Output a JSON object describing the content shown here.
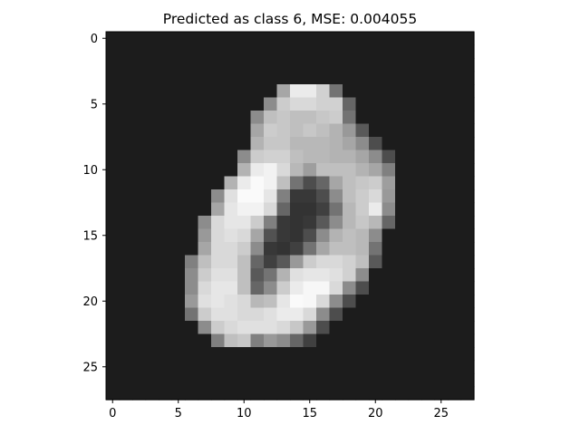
{
  "chart_data": {
    "type": "heatmap",
    "title": "Predicted as class 6, MSE: 0.004055",
    "xlabel": "",
    "ylabel": "",
    "colormap": "gray",
    "xlim": [
      -0.5,
      27.5
    ],
    "ylim": [
      27.5,
      -0.5
    ],
    "xticks": [
      0,
      5,
      10,
      15,
      20,
      25
    ],
    "yticks": [
      0,
      5,
      10,
      15,
      20,
      25
    ],
    "grid": false,
    "shape": [
      28,
      28
    ],
    "background_level": 0.11,
    "pixels": [
      [
        4,
        14,
        0.92
      ],
      [
        4,
        15,
        0.92
      ],
      [
        4,
        16,
        0.82
      ],
      [
        4,
        13,
        0.65
      ],
      [
        4,
        17,
        0.45
      ],
      [
        5,
        12,
        0.55
      ],
      [
        5,
        13,
        0.8
      ],
      [
        5,
        14,
        0.85
      ],
      [
        5,
        15,
        0.85
      ],
      [
        5,
        16,
        0.82
      ],
      [
        5,
        17,
        0.82
      ],
      [
        5,
        18,
        0.4
      ],
      [
        6,
        11,
        0.55
      ],
      [
        6,
        12,
        0.75
      ],
      [
        6,
        13,
        0.78
      ],
      [
        6,
        14,
        0.75
      ],
      [
        6,
        15,
        0.75
      ],
      [
        6,
        16,
        0.78
      ],
      [
        6,
        17,
        0.8
      ],
      [
        6,
        18,
        0.45
      ],
      [
        7,
        11,
        0.65
      ],
      [
        7,
        12,
        0.8
      ],
      [
        7,
        13,
        0.78
      ],
      [
        7,
        14,
        0.75
      ],
      [
        7,
        15,
        0.78
      ],
      [
        7,
        16,
        0.75
      ],
      [
        7,
        17,
        0.7
      ],
      [
        7,
        18,
        0.6
      ],
      [
        7,
        19,
        0.35
      ],
      [
        8,
        11,
        0.7
      ],
      [
        8,
        12,
        0.78
      ],
      [
        8,
        13,
        0.78
      ],
      [
        8,
        14,
        0.72
      ],
      [
        8,
        15,
        0.72
      ],
      [
        8,
        16,
        0.72
      ],
      [
        8,
        17,
        0.7
      ],
      [
        8,
        18,
        0.65
      ],
      [
        8,
        19,
        0.55
      ],
      [
        8,
        20,
        0.3
      ],
      [
        9,
        10,
        0.55
      ],
      [
        9,
        11,
        0.8
      ],
      [
        9,
        12,
        0.82
      ],
      [
        9,
        13,
        0.82
      ],
      [
        9,
        14,
        0.75
      ],
      [
        9,
        15,
        0.72
      ],
      [
        9,
        16,
        0.72
      ],
      [
        9,
        17,
        0.7
      ],
      [
        9,
        18,
        0.7
      ],
      [
        9,
        19,
        0.65
      ],
      [
        9,
        20,
        0.55
      ],
      [
        9,
        21,
        0.3
      ],
      [
        10,
        10,
        0.7
      ],
      [
        10,
        11,
        0.92
      ],
      [
        10,
        12,
        0.95
      ],
      [
        10,
        13,
        0.85
      ],
      [
        10,
        14,
        0.72
      ],
      [
        10,
        15,
        0.62
      ],
      [
        10,
        16,
        0.75
      ],
      [
        10,
        17,
        0.75
      ],
      [
        10,
        18,
        0.75
      ],
      [
        10,
        19,
        0.7
      ],
      [
        10,
        20,
        0.65
      ],
      [
        10,
        21,
        0.5
      ],
      [
        11,
        9,
        0.7
      ],
      [
        11,
        10,
        0.92
      ],
      [
        11,
        11,
        0.98
      ],
      [
        11,
        12,
        0.95
      ],
      [
        11,
        13,
        0.75
      ],
      [
        11,
        14,
        0.45
      ],
      [
        11,
        15,
        0.3
      ],
      [
        11,
        16,
        0.4
      ],
      [
        11,
        17,
        0.65
      ],
      [
        11,
        18,
        0.75
      ],
      [
        11,
        19,
        0.78
      ],
      [
        11,
        20,
        0.8
      ],
      [
        11,
        21,
        0.62
      ],
      [
        12,
        8,
        0.55
      ],
      [
        12,
        9,
        0.88
      ],
      [
        12,
        10,
        0.98
      ],
      [
        12,
        11,
        0.98
      ],
      [
        12,
        12,
        0.9
      ],
      [
        12,
        13,
        0.5
      ],
      [
        12,
        14,
        0.22
      ],
      [
        12,
        15,
        0.22
      ],
      [
        12,
        16,
        0.3
      ],
      [
        12,
        17,
        0.55
      ],
      [
        12,
        18,
        0.75
      ],
      [
        12,
        19,
        0.8
      ],
      [
        12,
        20,
        0.85
      ],
      [
        12,
        21,
        0.6
      ],
      [
        13,
        8,
        0.65
      ],
      [
        13,
        9,
        0.9
      ],
      [
        13,
        10,
        0.95
      ],
      [
        13,
        11,
        0.95
      ],
      [
        13,
        12,
        0.85
      ],
      [
        13,
        13,
        0.4
      ],
      [
        13,
        14,
        0.2
      ],
      [
        13,
        15,
        0.2
      ],
      [
        13,
        16,
        0.25
      ],
      [
        13,
        17,
        0.45
      ],
      [
        13,
        18,
        0.72
      ],
      [
        13,
        19,
        0.8
      ],
      [
        13,
        20,
        0.92
      ],
      [
        13,
        21,
        0.55
      ],
      [
        14,
        7,
        0.55
      ],
      [
        14,
        8,
        0.85
      ],
      [
        14,
        9,
        0.9
      ],
      [
        14,
        10,
        0.9
      ],
      [
        14,
        11,
        0.8
      ],
      [
        14,
        12,
        0.5
      ],
      [
        14,
        13,
        0.22
      ],
      [
        14,
        14,
        0.2
      ],
      [
        14,
        15,
        0.22
      ],
      [
        14,
        16,
        0.35
      ],
      [
        14,
        17,
        0.55
      ],
      [
        14,
        18,
        0.72
      ],
      [
        14,
        19,
        0.78
      ],
      [
        14,
        20,
        0.72
      ],
      [
        14,
        21,
        0.4
      ],
      [
        15,
        7,
        0.6
      ],
      [
        15,
        8,
        0.85
      ],
      [
        15,
        9,
        0.88
      ],
      [
        15,
        10,
        0.85
      ],
      [
        15,
        11,
        0.65
      ],
      [
        15,
        12,
        0.32
      ],
      [
        15,
        13,
        0.22
      ],
      [
        15,
        14,
        0.2
      ],
      [
        15,
        15,
        0.3
      ],
      [
        15,
        16,
        0.55
      ],
      [
        15,
        17,
        0.7
      ],
      [
        15,
        18,
        0.75
      ],
      [
        15,
        19,
        0.72
      ],
      [
        15,
        20,
        0.55
      ],
      [
        16,
        7,
        0.65
      ],
      [
        16,
        8,
        0.85
      ],
      [
        16,
        9,
        0.85
      ],
      [
        16,
        10,
        0.8
      ],
      [
        16,
        11,
        0.55
      ],
      [
        16,
        12,
        0.22
      ],
      [
        16,
        13,
        0.2
      ],
      [
        16,
        14,
        0.25
      ],
      [
        16,
        15,
        0.45
      ],
      [
        16,
        16,
        0.65
      ],
      [
        16,
        17,
        0.75
      ],
      [
        16,
        18,
        0.75
      ],
      [
        16,
        19,
        0.72
      ],
      [
        16,
        20,
        0.45
      ],
      [
        17,
        6,
        0.5
      ],
      [
        17,
        7,
        0.75
      ],
      [
        17,
        8,
        0.85
      ],
      [
        17,
        9,
        0.85
      ],
      [
        17,
        10,
        0.75
      ],
      [
        17,
        11,
        0.4
      ],
      [
        17,
        12,
        0.25
      ],
      [
        17,
        13,
        0.35
      ],
      [
        17,
        14,
        0.6
      ],
      [
        17,
        15,
        0.8
      ],
      [
        17,
        16,
        0.85
      ],
      [
        17,
        17,
        0.85
      ],
      [
        17,
        18,
        0.82
      ],
      [
        17,
        19,
        0.75
      ],
      [
        17,
        20,
        0.35
      ],
      [
        18,
        6,
        0.55
      ],
      [
        18,
        7,
        0.8
      ],
      [
        18,
        8,
        0.88
      ],
      [
        18,
        9,
        0.88
      ],
      [
        18,
        10,
        0.75
      ],
      [
        18,
        11,
        0.35
      ],
      [
        18,
        12,
        0.45
      ],
      [
        18,
        13,
        0.7
      ],
      [
        18,
        14,
        0.88
      ],
      [
        18,
        15,
        0.9
      ],
      [
        18,
        16,
        0.9
      ],
      [
        18,
        17,
        0.88
      ],
      [
        18,
        18,
        0.82
      ],
      [
        18,
        19,
        0.55
      ],
      [
        19,
        6,
        0.55
      ],
      [
        19,
        7,
        0.85
      ],
      [
        19,
        8,
        0.9
      ],
      [
        19,
        9,
        0.9
      ],
      [
        19,
        10,
        0.75
      ],
      [
        19,
        11,
        0.4
      ],
      [
        19,
        12,
        0.55
      ],
      [
        19,
        13,
        0.8
      ],
      [
        19,
        14,
        0.92
      ],
      [
        19,
        15,
        0.97
      ],
      [
        19,
        16,
        0.97
      ],
      [
        19,
        17,
        0.85
      ],
      [
        19,
        18,
        0.55
      ],
      [
        19,
        19,
        0.3
      ],
      [
        20,
        6,
        0.6
      ],
      [
        20,
        7,
        0.88
      ],
      [
        20,
        8,
        0.9
      ],
      [
        20,
        9,
        0.88
      ],
      [
        20,
        10,
        0.85
      ],
      [
        20,
        11,
        0.72
      ],
      [
        20,
        12,
        0.75
      ],
      [
        20,
        13,
        0.9
      ],
      [
        20,
        14,
        0.98
      ],
      [
        20,
        15,
        0.97
      ],
      [
        20,
        16,
        0.85
      ],
      [
        20,
        17,
        0.55
      ],
      [
        20,
        18,
        0.3
      ],
      [
        21,
        6,
        0.45
      ],
      [
        21,
        7,
        0.8
      ],
      [
        21,
        8,
        0.88
      ],
      [
        21,
        9,
        0.88
      ],
      [
        21,
        10,
        0.85
      ],
      [
        21,
        11,
        0.85
      ],
      [
        21,
        12,
        0.88
      ],
      [
        21,
        13,
        0.92
      ],
      [
        21,
        14,
        0.92
      ],
      [
        21,
        15,
        0.85
      ],
      [
        21,
        16,
        0.55
      ],
      [
        21,
        17,
        0.3
      ],
      [
        22,
        7,
        0.55
      ],
      [
        22,
        8,
        0.8
      ],
      [
        22,
        9,
        0.85
      ],
      [
        22,
        10,
        0.88
      ],
      [
        22,
        11,
        0.88
      ],
      [
        22,
        12,
        0.88
      ],
      [
        22,
        13,
        0.85
      ],
      [
        22,
        14,
        0.78
      ],
      [
        22,
        15,
        0.6
      ],
      [
        22,
        16,
        0.3
      ],
      [
        23,
        8,
        0.5
      ],
      [
        23,
        9,
        0.75
      ],
      [
        23,
        10,
        0.78
      ],
      [
        23,
        11,
        0.5
      ],
      [
        23,
        12,
        0.6
      ],
      [
        23,
        13,
        0.55
      ],
      [
        23,
        14,
        0.4
      ],
      [
        23,
        15,
        0.25
      ]
    ]
  }
}
